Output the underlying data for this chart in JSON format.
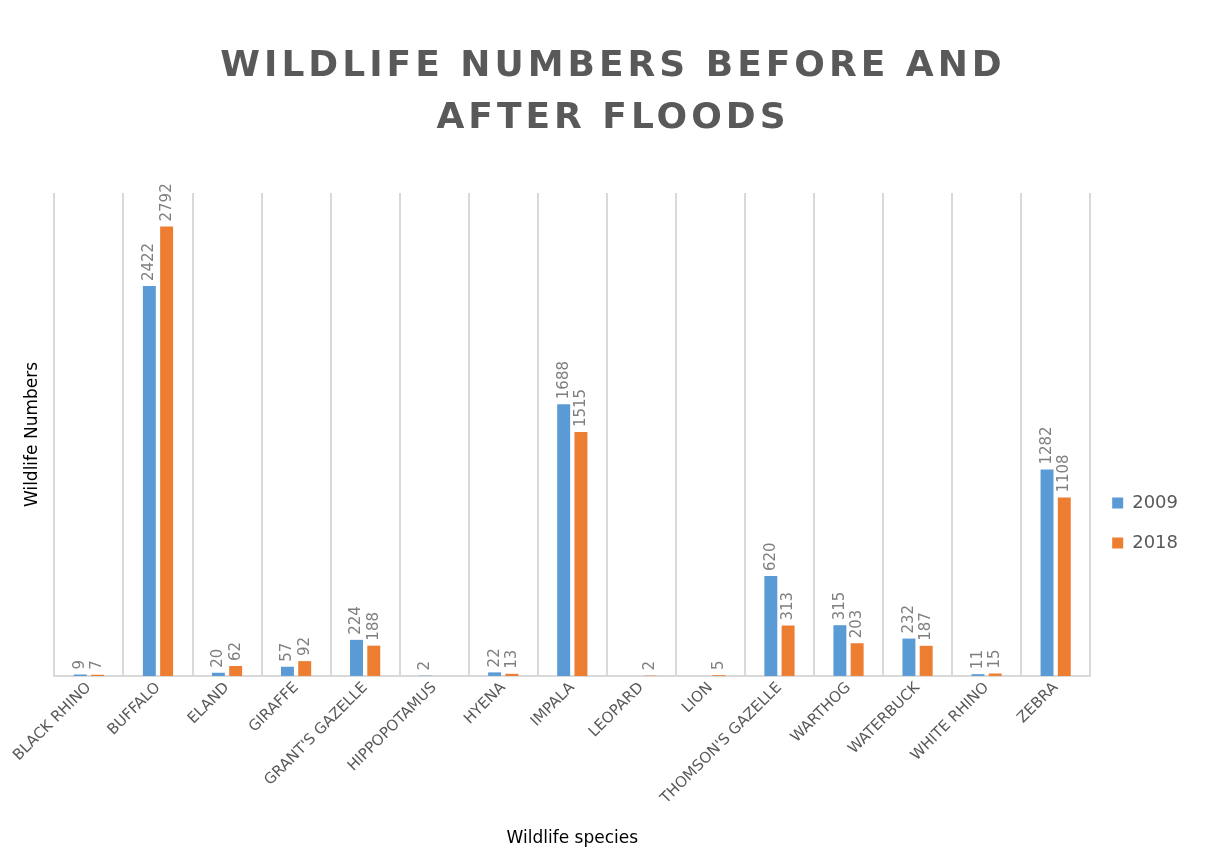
{
  "chart_data": {
    "type": "bar",
    "title": "WILDLIFE NUMBERS BEFORE AND AFTER FLOODS",
    "xlabel": "Wildlife species",
    "ylabel": "Wildlife Numbers",
    "categories": [
      "BLACK RHINO",
      "BUFFALO",
      "ELAND",
      "GIRAFFE",
      "GRANT'S GAZELLE",
      "HIPPOPOTAMUS",
      "HYENA",
      "IMPALA",
      "LEOPARD",
      "LION",
      "THOMSON'S GAZELLE",
      "WARTHOG",
      "WATERBUCK",
      "WHITE RHINO",
      "ZEBRA"
    ],
    "series": [
      {
        "name": "2009",
        "color": "#5b9bd5",
        "values": [
          9,
          2422,
          20,
          57,
          224,
          2,
          22,
          1688,
          null,
          null,
          620,
          315,
          232,
          11,
          1282
        ]
      },
      {
        "name": "2018",
        "color": "#ed7d31",
        "values": [
          7,
          2792,
          62,
          92,
          188,
          null,
          13,
          1515,
          2,
          5,
          313,
          203,
          187,
          15,
          1108
        ]
      }
    ],
    "data_labels": true,
    "grid": "x",
    "legend": "right",
    "tick_labels": "x"
  }
}
